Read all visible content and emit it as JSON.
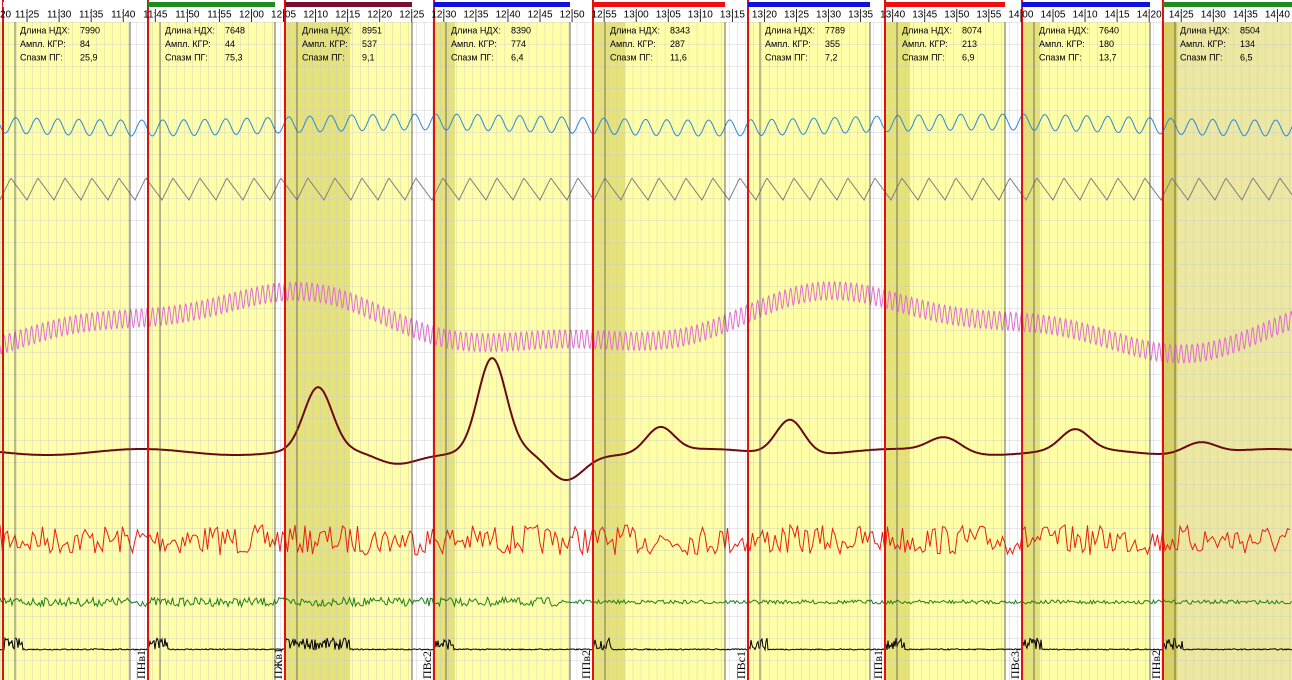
{
  "time_axis": {
    "labels": [
      "20",
      "11:25",
      "11:30",
      "11:35",
      "11:40",
      "11:45",
      "11:50",
      "11:55",
      "12:00",
      "12:05",
      "12:10",
      "12:15",
      "12:20",
      "12:25",
      "12:30",
      "12:35",
      "12:40",
      "12:45",
      "12:50",
      "12:55",
      "13:00",
      "13:05",
      "13:10",
      "13:15",
      "13:20",
      "13:25",
      "13:30",
      "13:35",
      "13:40",
      "13:45",
      "13:50",
      "13:55",
      "14:00",
      "14:05",
      "14:10",
      "14:15",
      "14:20",
      "14:25",
      "14:30",
      "14:35",
      "14:40"
    ]
  },
  "info_labels": [
    "Длина НДХ:",
    "Ампл. КГР:",
    "Спазм ПГ:"
  ],
  "segments": [
    {
      "color": "#ffffff",
      "values": [
        7990,
        84,
        "25,9"
      ]
    },
    {
      "color": "#1e8c1e",
      "values": [
        7648,
        44,
        "75,3"
      ]
    },
    {
      "color": "#7a1030",
      "values": [
        8951,
        537,
        "9,1"
      ]
    },
    {
      "color": "#1010e0",
      "values": [
        8390,
        774,
        "6,4"
      ]
    },
    {
      "color": "#ee1010",
      "values": [
        8343,
        287,
        "11,6"
      ]
    },
    {
      "color": "#1010e0",
      "values": [
        7789,
        355,
        "7,2"
      ]
    },
    {
      "color": "#ee1010",
      "values": [
        8074,
        213,
        "6,9"
      ]
    },
    {
      "color": "#1010e0",
      "values": [
        7640,
        180,
        "13,7"
      ]
    },
    {
      "color": "#1e8c1e",
      "values": [
        8504,
        134,
        "6,5"
      ]
    }
  ],
  "markers": [
    {
      "label": "ПНв1"
    },
    {
      "label": "ПЖв1"
    },
    {
      "label": "ПВс2"
    },
    {
      "label": "ППв2"
    },
    {
      "label": "ПВс1"
    },
    {
      "label": "ППв1"
    },
    {
      "label": "ПВс3"
    },
    {
      "label": "ПНв2"
    }
  ]
}
